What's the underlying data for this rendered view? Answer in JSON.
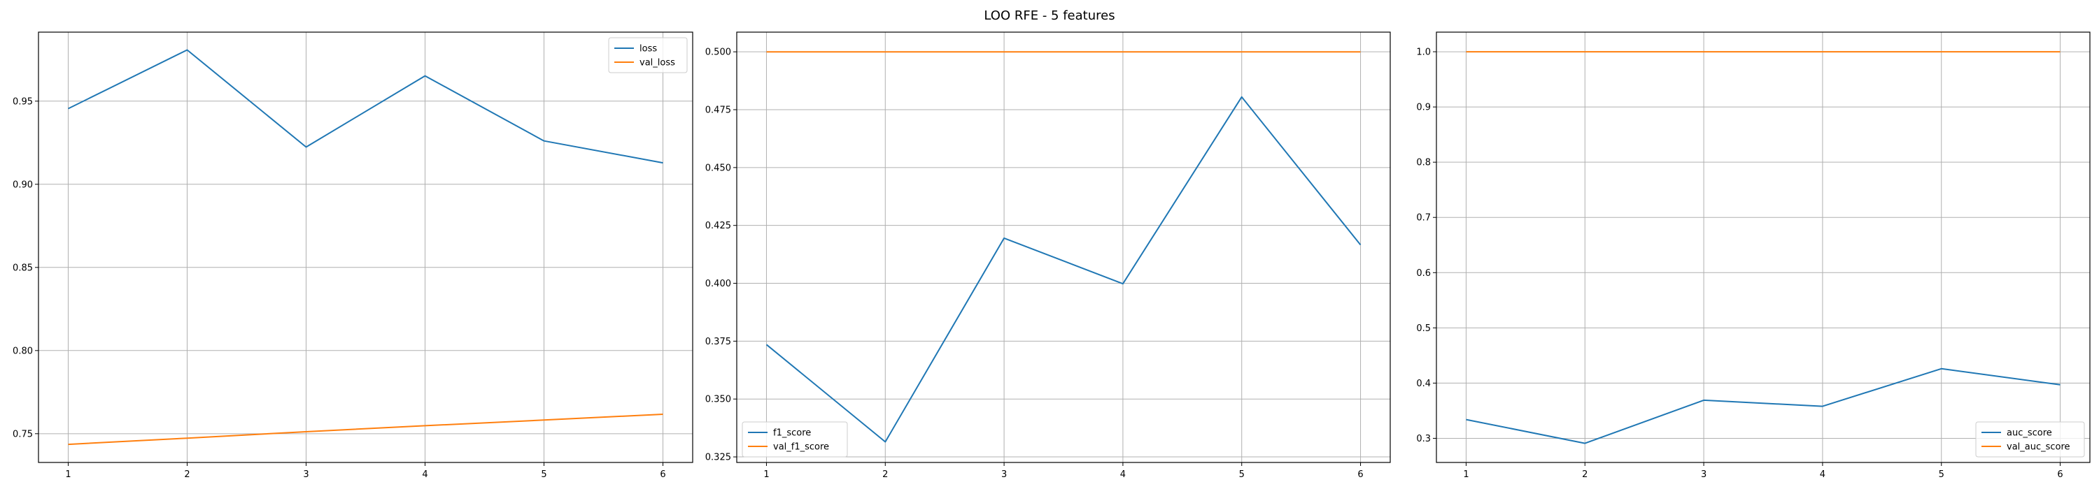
{
  "figure": {
    "title": "LOO RFE - 5 features"
  },
  "chart_data": [
    {
      "type": "line",
      "title": "",
      "xlabel": "",
      "ylabel": "",
      "x": [
        1,
        2,
        3,
        4,
        5,
        6
      ],
      "xticks": [
        "1",
        "2",
        "3",
        "4",
        "5",
        "6"
      ],
      "xlim": [
        0.75,
        6.25
      ],
      "ylim": [
        0.7327,
        0.9915
      ],
      "yticks": [
        "0.75",
        "0.80",
        "0.85",
        "0.90",
        "0.95"
      ],
      "ytick_values": [
        0.75,
        0.8,
        0.85,
        0.9,
        0.95
      ],
      "grid": true,
      "legend_position": "upper right",
      "series": [
        {
          "name": "loss",
          "color": "#1f77b4",
          "values": [
            0.9455,
            0.9808,
            0.9224,
            0.9652,
            0.9261,
            0.9129
          ]
        },
        {
          "name": "val_loss",
          "color": "#ff7f0e",
          "values": [
            0.7436,
            0.7473,
            0.7512,
            0.7548,
            0.7582,
            0.7617
          ]
        }
      ]
    },
    {
      "type": "line",
      "title": "",
      "xlabel": "",
      "ylabel": "",
      "x": [
        1,
        2,
        3,
        4,
        5,
        6
      ],
      "xticks": [
        "1",
        "2",
        "3",
        "4",
        "5",
        "6"
      ],
      "xlim": [
        0.75,
        6.25
      ],
      "ylim": [
        0.3226,
        0.5085
      ],
      "yticks": [
        "0.325",
        "0.350",
        "0.375",
        "0.400",
        "0.425",
        "0.450",
        "0.475",
        "0.500"
      ],
      "ytick_values": [
        0.325,
        0.35,
        0.375,
        0.4,
        0.425,
        0.45,
        0.475,
        0.5
      ],
      "grid": true,
      "legend_position": "lower left",
      "series": [
        {
          "name": "f1_score",
          "color": "#1f77b4",
          "values": [
            0.3735,
            0.3315,
            0.4195,
            0.3998,
            0.4805,
            0.4166
          ]
        },
        {
          "name": "val_f1_score",
          "color": "#ff7f0e",
          "values": [
            0.5,
            0.5,
            0.5,
            0.5,
            0.5,
            0.5
          ]
        }
      ]
    },
    {
      "type": "line",
      "title": "",
      "xlabel": "",
      "ylabel": "",
      "x": [
        1,
        2,
        3,
        4,
        5,
        6
      ],
      "xticks": [
        "1",
        "2",
        "3",
        "4",
        "5",
        "6"
      ],
      "xlim": [
        0.75,
        6.25
      ],
      "ylim": [
        0.2563,
        1.0355
      ],
      "yticks": [
        "0.3",
        "0.4",
        "0.5",
        "0.6",
        "0.7",
        "0.8",
        "0.9",
        "1.0"
      ],
      "ytick_values": [
        0.3,
        0.4,
        0.5,
        0.6,
        0.7,
        0.8,
        0.9,
        1.0
      ],
      "grid": true,
      "legend_position": "lower right",
      "series": [
        {
          "name": "auc_score",
          "color": "#1f77b4",
          "values": [
            0.334,
            0.291,
            0.369,
            0.358,
            0.426,
            0.397
          ]
        },
        {
          "name": "val_auc_score",
          "color": "#ff7f0e",
          "values": [
            1.0,
            1.0,
            1.0,
            1.0,
            1.0,
            1.0
          ]
        }
      ]
    }
  ]
}
